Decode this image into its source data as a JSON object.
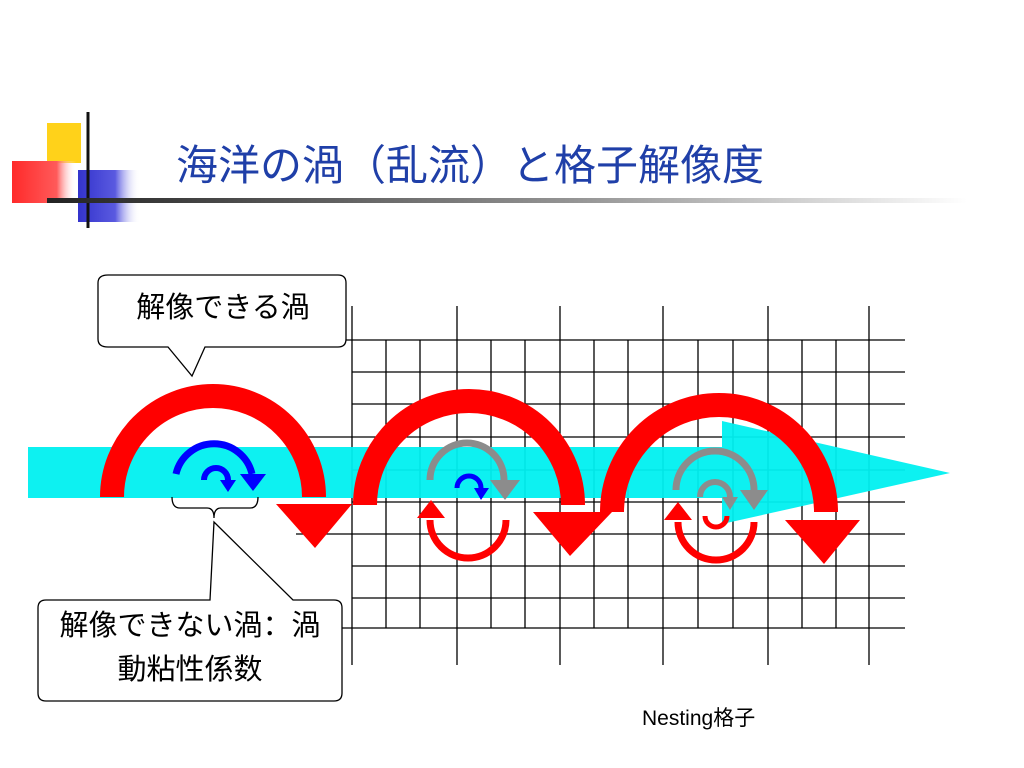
{
  "slide": {
    "title": "海洋の渦（乱流）と格子解像度"
  },
  "callouts": {
    "resolved": "解像できる渦",
    "unresolved_line1": "解像できない渦：渦",
    "unresolved_line2": "動粘性係数"
  },
  "grid": {
    "label": "Nesting格子"
  },
  "colors": {
    "title": "#1f3fa8",
    "current": "#00f0f0",
    "eddy_large": "#ff0000",
    "eddy_small": "#0000ff",
    "eddy_gray": "#8c8c8c",
    "deco_yellow": "#ffd21a",
    "deco_red": "#ff2a2a",
    "deco_blue": "#3333cc"
  }
}
